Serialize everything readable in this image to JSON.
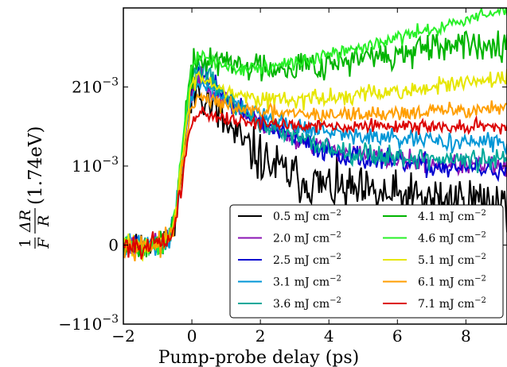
{
  "chart_data": {
    "type": "line",
    "title": "",
    "xlabel": "Pump-probe delay (ps)",
    "ylabel": {
      "prefix": "1",
      "numerator": "ΔR",
      "den_f": "F",
      "den_r": "R",
      "suffix": "(1.74eV)"
    },
    "xlim": [
      -2,
      9.2
    ],
    "ylim": [
      -0.001,
      0.003
    ],
    "xticks": [
      {
        "value": -2,
        "label": "−2"
      },
      {
        "value": 0,
        "label": "0"
      },
      {
        "value": 2,
        "label": "2"
      },
      {
        "value": 4,
        "label": "4"
      },
      {
        "value": 6,
        "label": "6"
      },
      {
        "value": 8,
        "label": "8"
      }
    ],
    "yticks": [
      {
        "value": -0.001,
        "mant": "−1",
        "exp": "−3"
      },
      {
        "value": 0,
        "mant": "0",
        "exp": ""
      },
      {
        "value": 0.001,
        "mant": "1",
        "exp": "−3"
      },
      {
        "value": 0.002,
        "mant": "2",
        "exp": "−3"
      }
    ],
    "ytick_base": "10",
    "legend_position": "lower-right",
    "legend_unit": "mJ cm",
    "legend_unit_exp": "−2",
    "series": [
      {
        "name": "0.5",
        "color": "#000000",
        "peak": 0.00205,
        "tail": 0.00055,
        "tau": 1.8,
        "trend": 0.0,
        "noise": 0.00022,
        "seed": 11
      },
      {
        "name": "2.0",
        "color": "#8b14b4",
        "peak": 0.00215,
        "tail": 0.00095,
        "tau": 2.6,
        "trend": 0.0,
        "noise": 9e-05,
        "seed": 23
      },
      {
        "name": "2.5",
        "color": "#0000d0",
        "peak": 0.00225,
        "tail": 0.00092,
        "tau": 2.4,
        "trend": 0.0,
        "noise": 0.0001,
        "seed": 37
      },
      {
        "name": "3.1",
        "color": "#0096d6",
        "peak": 0.0021,
        "tail": 0.00128,
        "tau": 2.2,
        "trend": 0.0,
        "noise": 8e-05,
        "seed": 41
      },
      {
        "name": "3.6",
        "color": "#00a89a",
        "peak": 0.0023,
        "tail": 0.00105,
        "tau": 2.0,
        "trend": 0.0,
        "noise": 0.0001,
        "seed": 53
      },
      {
        "name": "4.1",
        "color": "#00b400",
        "peak": 0.0024,
        "tail": 0.00205,
        "tau": 1.5,
        "trend": 6e-05,
        "noise": 0.00014,
        "seed": 67
      },
      {
        "name": "4.6",
        "color": "#28f028",
        "peak": 0.00245,
        "tail": 0.00195,
        "tau": 1.0,
        "trend": 0.000115,
        "noise": 6e-05,
        "seed": 71
      },
      {
        "name": "5.1",
        "color": "#e6e600",
        "peak": 0.0022,
        "tail": 0.00165,
        "tau": 1.2,
        "trend": 5e-05,
        "noise": 8e-05,
        "seed": 83
      },
      {
        "name": "6.1",
        "color": "#ff9e00",
        "peak": 0.0019,
        "tail": 0.00155,
        "tau": 1.4,
        "trend": 2e-05,
        "noise": 7e-05,
        "seed": 97
      },
      {
        "name": "7.1",
        "color": "#dc0000",
        "peak": 0.0017,
        "tail": 0.0015,
        "tau": 1.2,
        "trend": 0.0,
        "noise": 6e-05,
        "seed": 101
      }
    ]
  }
}
